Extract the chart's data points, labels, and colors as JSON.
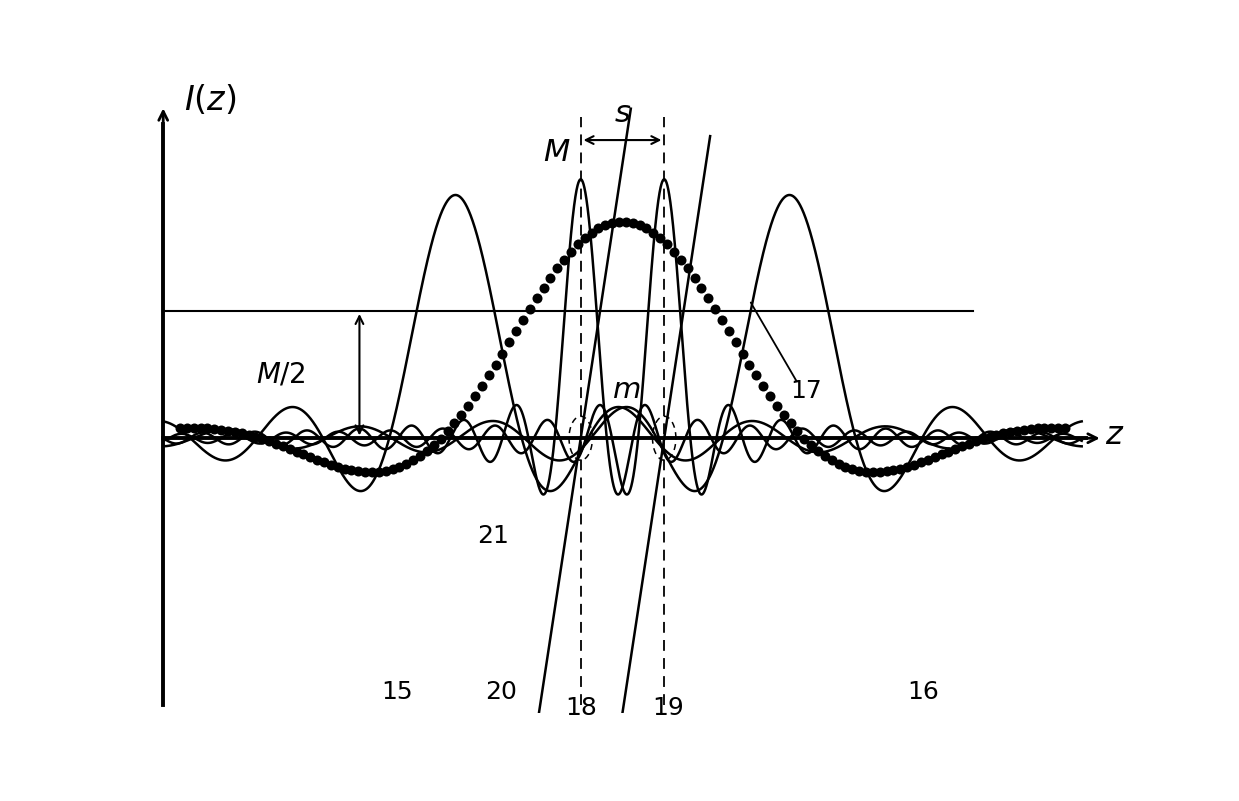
{
  "bg_color": "#ffffff",
  "fig_width": 12.39,
  "fig_height": 8.01,
  "dpi": 100,
  "x_min": -5.6,
  "x_max": 5.9,
  "y_min": -1.75,
  "y_max": 2.18,
  "shift_l": -0.5,
  "shift_r": 0.5,
  "lw": 1.8,
  "dot_size": 52,
  "M_val": 1.62,
  "label_15": [
    -2.7,
    -1.62
  ],
  "label_16": [
    3.6,
    -1.62
  ],
  "label_17": [
    2.2,
    0.3
  ],
  "label_18": [
    -0.5,
    -1.72
  ],
  "label_19": [
    0.55,
    -1.72
  ],
  "label_20": [
    -1.45,
    -1.62
  ],
  "label_21": [
    -1.55,
    -0.62
  ]
}
